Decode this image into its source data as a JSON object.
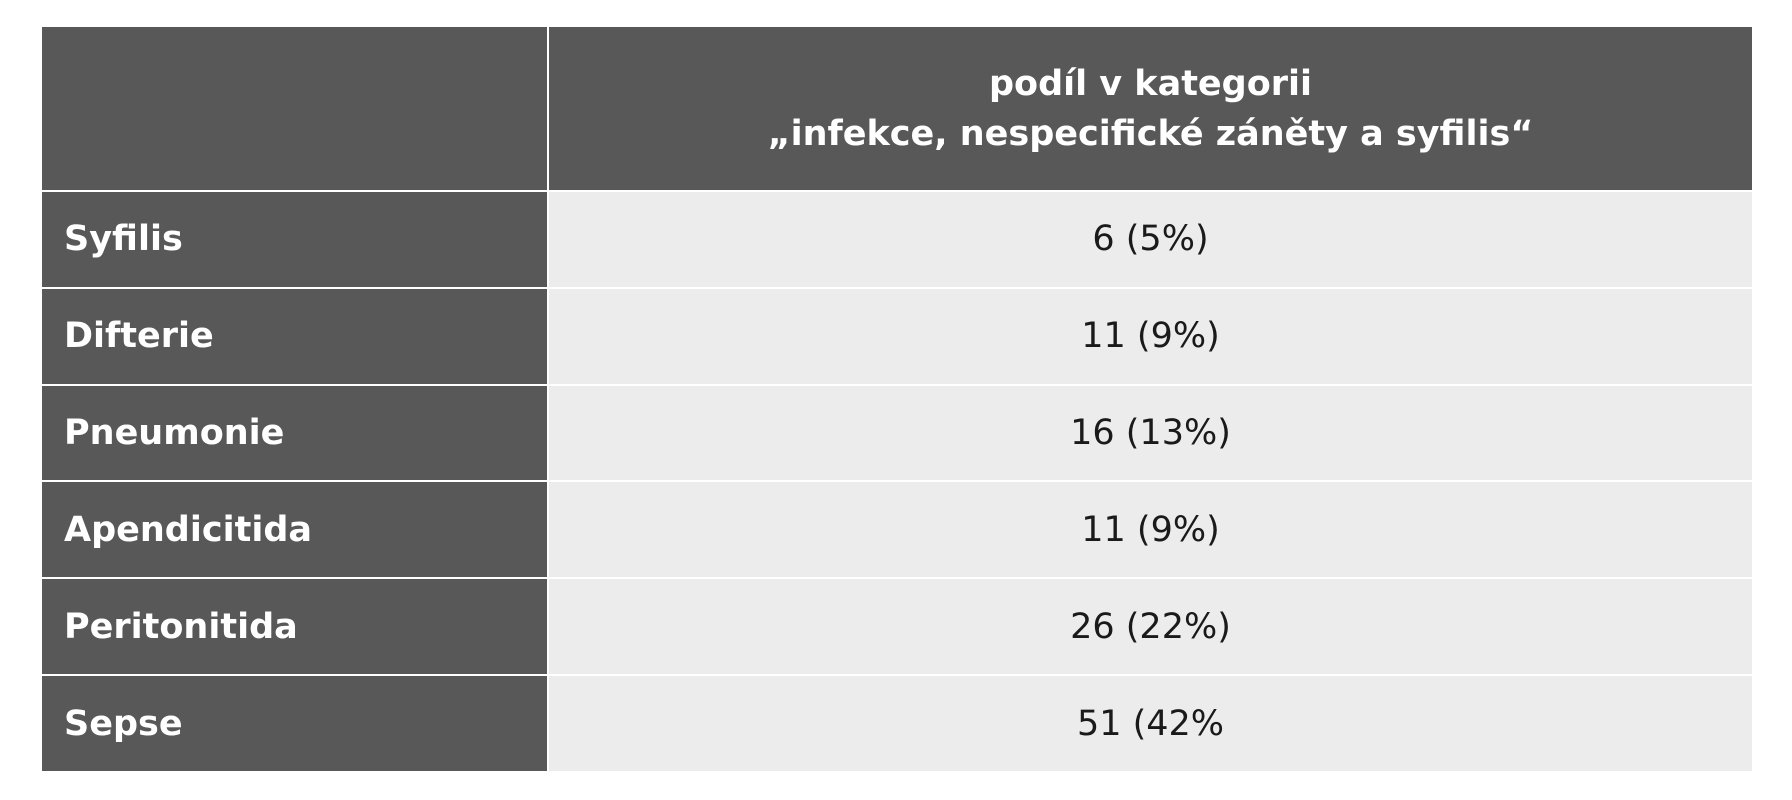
{
  "table": {
    "header": {
      "corner": "",
      "column_title_line1": "podíl v kategorii",
      "column_title_line2": "„infekce, nespecifické záněty a syfilis“"
    },
    "rows": [
      {
        "label": "Syfilis",
        "value": "6 (5%)"
      },
      {
        "label": "Difterie",
        "value": "11 (9%)"
      },
      {
        "label": "Pneumonie",
        "value": "16 (13%)"
      },
      {
        "label": "Apendicitida",
        "value": "11 (9%)"
      },
      {
        "label": "Peritonitida",
        "value": "26 (22%)"
      },
      {
        "label": "Sepse",
        "value": "51 (42%"
      }
    ]
  },
  "colors": {
    "header_bg": "#585858",
    "cell_bg": "#ececec",
    "header_text": "#ffffff",
    "cell_text": "#1a1a1a"
  }
}
